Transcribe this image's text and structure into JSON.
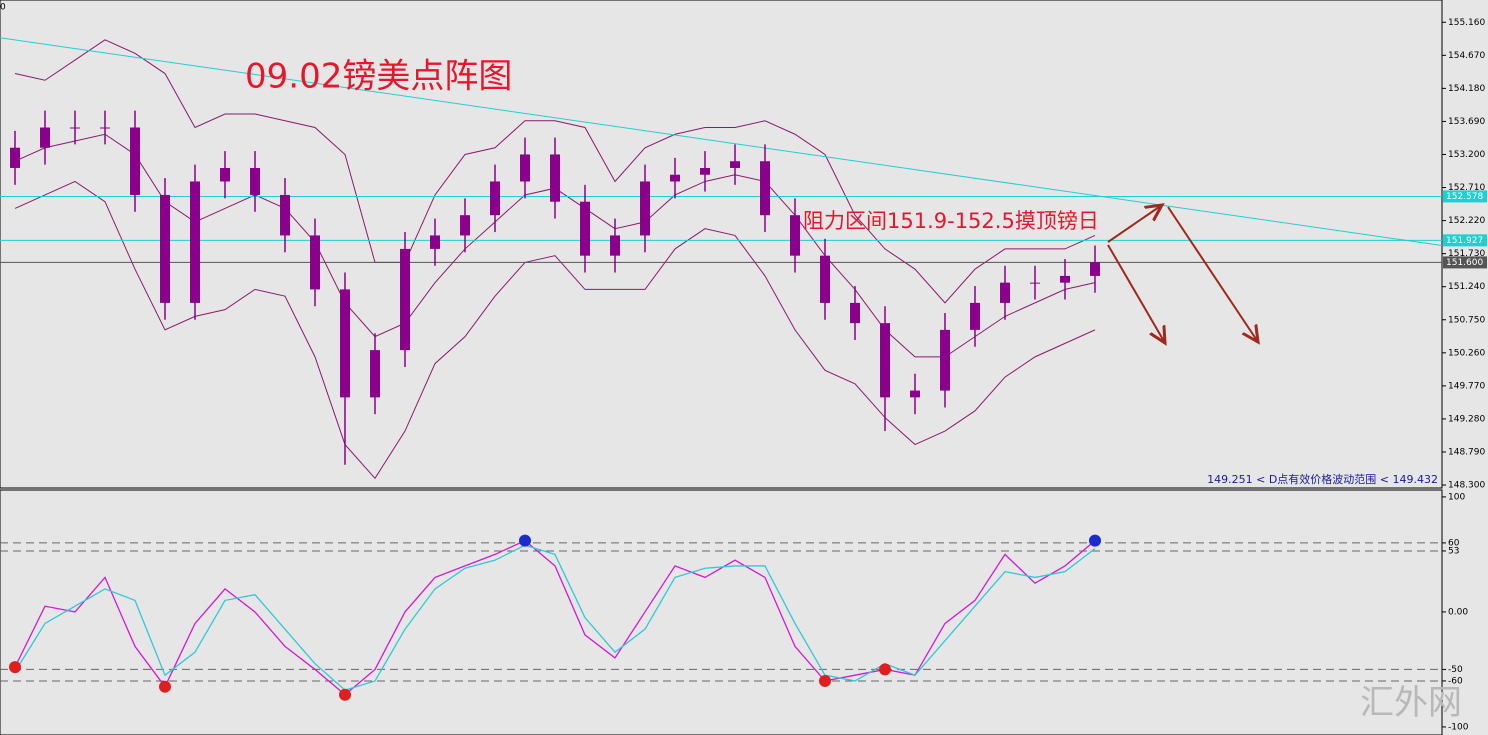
{
  "chart_data": [
    {
      "type": "candlestick",
      "title": "09.02镑美点阵图",
      "annotation": "阻力区间151.9-152.5摸顶镑日",
      "range_note": "149.251 < D点有效价格波动范围 < 149.432",
      "corner_label": "0",
      "candle_color": "#8b008b",
      "band_color": "#8b1a6b",
      "trendline_color": "#1fd0d0",
      "open": [
        153.0,
        153.3,
        153.6,
        153.6,
        153.6,
        152.6,
        151.0,
        152.8,
        153.0,
        152.6,
        152.0,
        151.2,
        149.6,
        150.3,
        151.8,
        152.0,
        152.3,
        152.8,
        153.2,
        152.5,
        151.7,
        152.0,
        152.8,
        152.9,
        153.0,
        153.1,
        152.3,
        151.7,
        151.0,
        150.7,
        149.6,
        149.7,
        150.6,
        151.0,
        151.3,
        151.3,
        151.4
      ],
      "high": [
        153.55,
        153.85,
        153.85,
        153.85,
        153.85,
        152.85,
        153.05,
        153.25,
        153.25,
        152.85,
        152.25,
        151.45,
        150.55,
        152.05,
        152.25,
        152.55,
        153.05,
        153.45,
        153.45,
        152.75,
        152.25,
        153.05,
        153.15,
        153.25,
        153.35,
        153.35,
        152.55,
        151.95,
        151.25,
        150.95,
        149.95,
        150.85,
        151.25,
        151.55,
        151.55,
        151.65,
        151.85
      ],
      "low": [
        152.75,
        153.05,
        153.35,
        153.35,
        152.35,
        150.75,
        150.75,
        152.55,
        152.35,
        151.75,
        150.95,
        148.6,
        149.35,
        150.05,
        151.55,
        151.75,
        152.05,
        152.55,
        152.25,
        151.45,
        151.45,
        151.75,
        152.55,
        152.65,
        152.75,
        152.05,
        151.45,
        150.75,
        150.45,
        149.1,
        149.35,
        149.45,
        150.35,
        150.75,
        151.05,
        151.05,
        151.15
      ],
      "close": [
        153.3,
        153.6,
        153.6,
        153.6,
        152.6,
        151.0,
        152.8,
        153.0,
        152.6,
        152.0,
        151.2,
        149.6,
        150.3,
        151.8,
        152.0,
        152.3,
        152.8,
        153.2,
        152.5,
        151.7,
        152.0,
        152.8,
        152.9,
        153.0,
        153.1,
        152.3,
        151.7,
        151.0,
        150.7,
        149.6,
        149.7,
        150.6,
        151.0,
        151.3,
        151.3,
        151.4,
        151.6
      ],
      "bands": {
        "upper": [
          154.4,
          154.3,
          154.6,
          154.9,
          154.7,
          154.4,
          153.6,
          153.8,
          153.8,
          153.7,
          153.6,
          153.2,
          151.6,
          151.6,
          152.6,
          153.2,
          153.3,
          153.7,
          153.7,
          153.6,
          152.8,
          153.3,
          153.5,
          153.6,
          153.6,
          153.7,
          153.5,
          153.2,
          152.3,
          151.8,
          151.5,
          151.0,
          151.5,
          151.8,
          151.8,
          151.8,
          152.0
        ],
        "middle": [
          153.1,
          153.3,
          153.4,
          153.5,
          153.2,
          152.5,
          152.2,
          152.4,
          152.6,
          152.4,
          151.9,
          151.0,
          150.5,
          150.7,
          151.3,
          151.8,
          152.2,
          152.6,
          152.7,
          152.4,
          152.1,
          152.2,
          152.6,
          152.8,
          152.9,
          152.8,
          152.3,
          151.7,
          151.2,
          150.6,
          150.2,
          150.2,
          150.5,
          150.8,
          151.0,
          151.2,
          151.3
        ],
        "lower": [
          152.4,
          152.6,
          152.8,
          152.5,
          151.5,
          150.6,
          150.8,
          150.9,
          151.2,
          151.1,
          150.2,
          148.9,
          148.4,
          149.1,
          150.1,
          150.5,
          151.1,
          151.6,
          151.7,
          151.2,
          151.2,
          151.2,
          151.8,
          152.1,
          152.0,
          151.4,
          150.6,
          150.0,
          149.8,
          149.3,
          148.9,
          149.1,
          149.4,
          149.9,
          150.2,
          150.4,
          150.6
        ]
      },
      "trendline": [
        154.93,
        151.85
      ],
      "hlines": [
        {
          "value": 152.578,
          "label": "152.578",
          "color": "#1fd0d0"
        },
        {
          "value": 151.927,
          "label": "151.927",
          "color": "#1fd0d0"
        },
        {
          "value": 151.6,
          "label": "151.600",
          "color": "#555555"
        }
      ],
      "ylim": [
        148.256,
        155.49
      ],
      "yticks": [
        {
          "value": 155.16,
          "label": "155.160"
        },
        {
          "value": 154.67,
          "label": "154.670"
        },
        {
          "value": 154.18,
          "label": "154.180"
        },
        {
          "value": 153.69,
          "label": "153.690"
        },
        {
          "value": 153.2,
          "label": "153.200"
        },
        {
          "value": 152.71,
          "label": "152.710"
        },
        {
          "value": 152.22,
          "label": "152.220"
        },
        {
          "value": 151.73,
          "label": "151.730"
        },
        {
          "value": 151.24,
          "label": "151.240"
        },
        {
          "value": 150.75,
          "label": "150.750"
        },
        {
          "value": 150.26,
          "label": "150.260"
        },
        {
          "value": 149.77,
          "label": "149.770"
        },
        {
          "value": 149.28,
          "label": "149.280"
        },
        {
          "value": 148.79,
          "label": "148.790"
        },
        {
          "value": 148.3,
          "label": "148.300"
        }
      ]
    },
    {
      "type": "line",
      "series": [
        {
          "color": "#d21ad2",
          "values": [
            -48,
            5,
            0,
            30,
            -30,
            -65,
            -10,
            20,
            0,
            -30,
            -50,
            -72,
            -50,
            0,
            30,
            40,
            50,
            62,
            40,
            -20,
            -40,
            0,
            40,
            30,
            45,
            30,
            -30,
            -60,
            -55,
            -50,
            -55,
            -10,
            10,
            50,
            25,
            40,
            62
          ]
        },
        {
          "color": "#30c8d8",
          "values": [
            -52,
            -10,
            5,
            20,
            10,
            -55,
            -35,
            10,
            15,
            -15,
            -45,
            -68,
            -60,
            -15,
            20,
            38,
            45,
            58,
            50,
            -5,
            -35,
            -15,
            30,
            38,
            40,
            40,
            -10,
            -55,
            -60,
            -45,
            -55,
            -25,
            5,
            35,
            30,
            35,
            55
          ]
        }
      ],
      "markers": [
        {
          "color": "#e01e1e",
          "values": [
            -48,
            null,
            null,
            null,
            null,
            -65,
            null,
            null,
            null,
            null,
            null,
            -72,
            null,
            null,
            null,
            null,
            null,
            null,
            null,
            null,
            null,
            null,
            null,
            null,
            null,
            null,
            null,
            -60,
            null,
            -50,
            null,
            null,
            null,
            null,
            null,
            null,
            null
          ]
        },
        {
          "color": "#1a2bd0",
          "values": [
            null,
            null,
            null,
            null,
            null,
            null,
            null,
            null,
            null,
            null,
            null,
            null,
            null,
            null,
            null,
            null,
            null,
            62,
            null,
            null,
            null,
            null,
            null,
            null,
            null,
            null,
            null,
            null,
            null,
            null,
            null,
            null,
            null,
            null,
            null,
            null,
            62
          ]
        }
      ],
      "levels": [
        60,
        53,
        -50,
        -60
      ],
      "ylim": [
        -107,
        106
      ],
      "yticks": [
        100,
        60,
        53,
        {
          "value": 0,
          "label": "0.00"
        },
        -50,
        -60,
        -100
      ]
    }
  ],
  "watermark": "汇外网"
}
